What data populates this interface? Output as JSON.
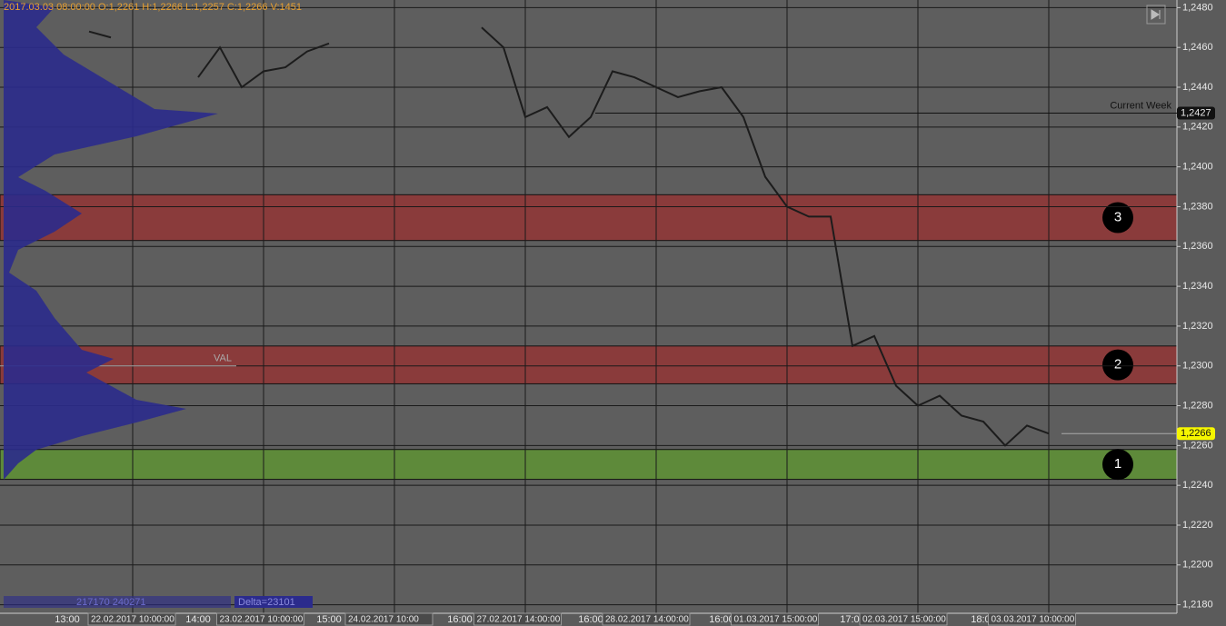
{
  "chart_data": {
    "type": "line",
    "header": "2017.03.03 08:00:00  O:1,2261  H:1,2266  L:1,2257  C:1,2266  V:1451",
    "categories": [
      null,
      null,
      null,
      "13:00",
      null,
      null,
      null,
      null,
      null,
      "14:00",
      null,
      null,
      null,
      null,
      null,
      "15:00",
      null,
      null,
      null,
      null,
      null,
      "16:00",
      null,
      null,
      null,
      null,
      null,
      "16:00",
      null,
      null,
      null,
      null,
      null,
      "16:00",
      null,
      null,
      null,
      null,
      null,
      "17:00",
      null,
      null,
      null,
      null,
      null,
      "18:00",
      null,
      null,
      null
    ],
    "date_labels": [
      "22.02.2017 10:00:00",
      "23.02.2017 10:00:00",
      "24.02.2017 10:00",
      "27.02.2017 14:00:00",
      "28.02.2017 14:00:00",
      "01.03.2017 15:00:00",
      "02.03.2017 15:00:00",
      "03.03.2017 10:00:00"
    ],
    "series": [
      {
        "color": "#1c1c1c",
        "values": [
          null,
          null,
          null,
          null,
          1.2468,
          1.2465,
          null,
          null,
          null,
          1.2445,
          1.246,
          1.244,
          1.2448,
          1.245,
          1.2458,
          1.2462,
          null,
          null,
          null,
          null,
          null,
          null,
          1.247,
          1.246,
          1.2425,
          1.243,
          1.2415,
          1.2425,
          1.2448,
          1.2445,
          1.244,
          1.2435,
          1.2438,
          1.244,
          1.2425,
          1.2395,
          1.238,
          1.2375,
          1.2375,
          1.231,
          1.2315,
          1.229,
          1.228,
          1.2285,
          1.2275,
          1.2272,
          1.226,
          1.227,
          1.2266
        ]
      }
    ],
    "ylim": [
      1.2178,
      1.2482
    ],
    "yticks": [
      {
        "value": 1.218,
        "label": "1,2180"
      },
      {
        "value": 1.22,
        "label": "1,2200"
      },
      {
        "value": 1.222,
        "label": "1,2220"
      },
      {
        "value": 1.224,
        "label": "1,2240"
      },
      {
        "value": 1.226,
        "label": "1,2260"
      },
      {
        "value": 1.228,
        "label": "1,2280"
      },
      {
        "value": 1.23,
        "label": "1,2300"
      },
      {
        "value": 1.232,
        "label": "1,2320"
      },
      {
        "value": 1.234,
        "label": "1,2340"
      },
      {
        "value": 1.236,
        "label": "1,2360"
      },
      {
        "value": 1.238,
        "label": "1,2380"
      },
      {
        "value": 1.24,
        "label": "1,2400"
      },
      {
        "value": 1.242,
        "label": "1,2420"
      },
      {
        "value": 1.244,
        "label": "1,2440"
      },
      {
        "value": 1.246,
        "label": "1,2460"
      },
      {
        "value": 1.248,
        "label": "1,2480"
      }
    ],
    "grid": true,
    "zones": [
      {
        "label": "3",
        "low": 1.2363,
        "high": 1.2386,
        "color": "#8a3b3b"
      },
      {
        "label": "2",
        "low": 1.2291,
        "high": 1.231,
        "color": "#8a3b3b"
      },
      {
        "label": "1",
        "low": 1.2243,
        "high": 1.2258,
        "color": "#5e8a3a"
      }
    ],
    "levels": [
      {
        "name": "Current Week",
        "value": 1.2427,
        "label": "1,2427"
      },
      {
        "name": "VAL",
        "value": 1.23
      }
    ],
    "last_price": {
      "value": 1.2266,
      "label": "1,2266"
    },
    "footer": {
      "volumes": "217170 240271",
      "delta": "Delta=23101"
    }
  }
}
